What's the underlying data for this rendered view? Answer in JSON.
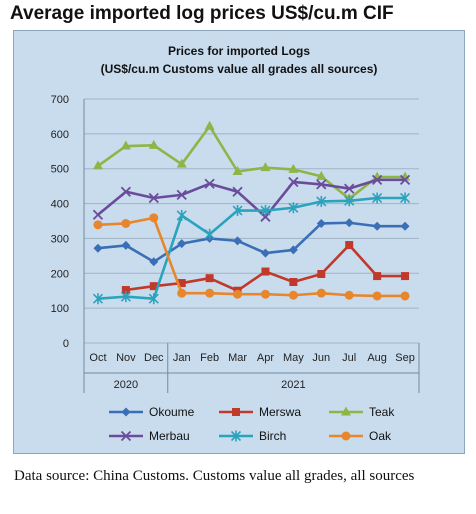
{
  "page": {
    "heading": "Average imported log prices US$/cu.m CIF",
    "source": "Data source: China Customs. Customs value all grades, all sources"
  },
  "chart_data": {
    "type": "line",
    "title": "Prices for imported Logs",
    "subtitle": "(US$/cu.m Customs value all grades all sources)",
    "categories": [
      "Oct",
      "Nov",
      "Dec",
      "Jan",
      "Feb",
      "Mar",
      "Apr",
      "May",
      "Jun",
      "Jul",
      "Aug",
      "Sep"
    ],
    "year_groups": [
      {
        "label": "2020",
        "from": 0,
        "to": 2
      },
      {
        "label": "2021",
        "from": 3,
        "to": 11
      }
    ],
    "ylim": [
      0,
      700
    ],
    "yticks": [
      0,
      100,
      200,
      300,
      400,
      500,
      600,
      700
    ],
    "grid": true,
    "legend_position": "bottom",
    "series": [
      {
        "name": "Okoume",
        "color": "#3a6fb5",
        "marker": "diamond",
        "values": [
          272,
          280,
          233,
          285,
          300,
          293,
          258,
          267,
          343,
          345,
          335,
          335
        ]
      },
      {
        "name": "Merswa",
        "color": "#c0392b",
        "marker": "square",
        "values": [
          null,
          152,
          163,
          172,
          186,
          150,
          205,
          175,
          198,
          281,
          192,
          192
        ]
      },
      {
        "name": "Teak",
        "color": "#8db547",
        "marker": "triangle",
        "values": [
          508,
          565,
          567,
          513,
          622,
          492,
          503,
          498,
          478,
          414,
          476,
          476
        ]
      },
      {
        "name": "Merbau",
        "color": "#6b4c9a",
        "marker": "x",
        "values": [
          368,
          434,
          416,
          425,
          457,
          434,
          362,
          462,
          455,
          443,
          468,
          468
        ]
      },
      {
        "name": "Birch",
        "color": "#2ca3bd",
        "marker": "star",
        "values": [
          127,
          133,
          127,
          366,
          312,
          380,
          380,
          388,
          406,
          408,
          416,
          416
        ]
      },
      {
        "name": "Oak",
        "color": "#e8862c",
        "marker": "circle",
        "values": [
          339,
          343,
          359,
          143,
          143,
          140,
          140,
          137,
          143,
          137,
          135,
          135
        ]
      }
    ]
  }
}
